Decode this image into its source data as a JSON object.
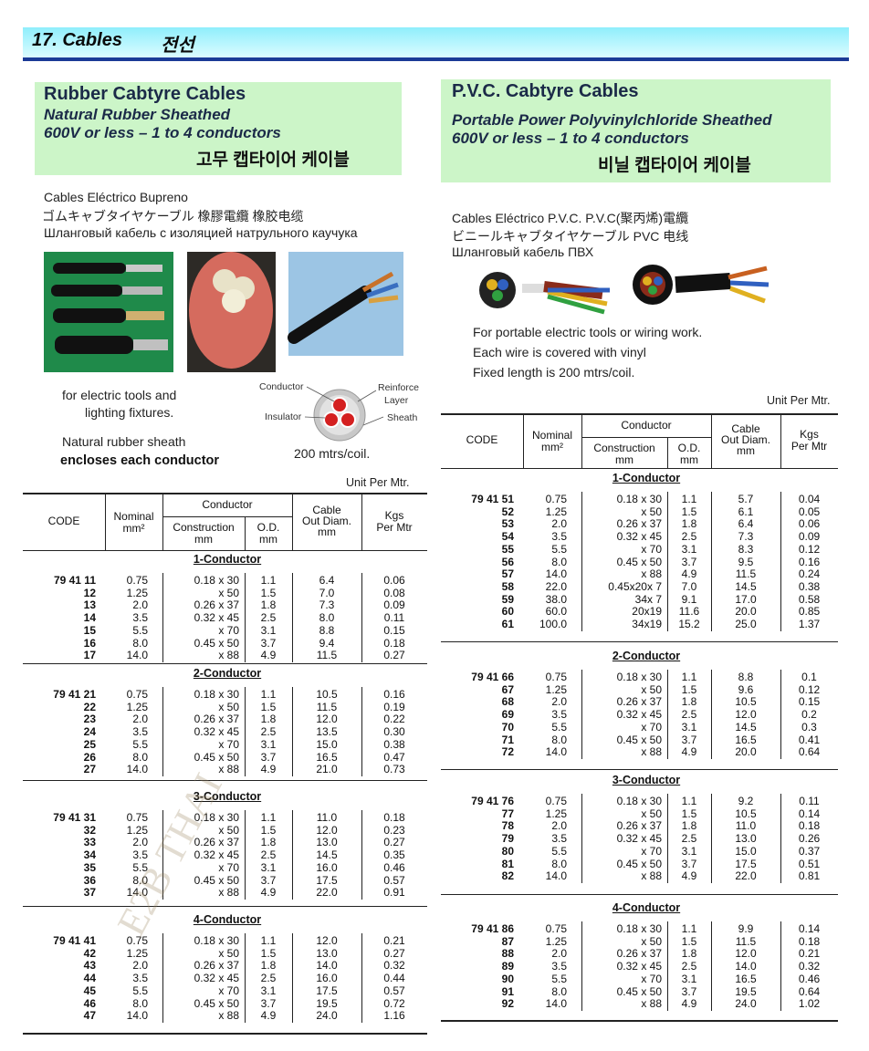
{
  "header": {
    "title": "17. Cables",
    "title_korean": "전선"
  },
  "watermark": "E2B THAI",
  "sections": [
    {
      "title": "Rubber Cabtyre Cables",
      "subtitle": "Natural Rubber Sheathed",
      "rating": "600V or less – 1 to 4 conductors",
      "korean": "고무 캡타이어 케이블",
      "names": [
        "Cables Eléctrico Bupreno",
        "ゴムキャブタイヤケーブル  橡膠電纜   橡胶电缆",
        "Шланговый кабель с изоляцией натрульного каучука"
      ],
      "description": [
        "for electric tools and",
        "lighting fixtures.",
        "Natural rubber sheath",
        "encloses each conductor"
      ],
      "diagram": {
        "conductor": "Conductor",
        "reinforce": "Reinforce",
        "layer": "Layer",
        "insulator": "Insulator",
        "sheath": "Sheath"
      },
      "coil_length": "200 mtrs/coil.",
      "unit_note": "Unit Per Mtr.",
      "table": {
        "columns": {
          "code": "CODE",
          "nominal": "Nominal",
          "nominal_unit": "mm²",
          "conductor": "Conductor",
          "construction": "Construction",
          "construction_unit": "mm",
          "od": "O.D.",
          "od_unit": "mm",
          "cable": "Cable",
          "cable_2": "Out Diam.",
          "cable_unit": "mm",
          "kgs": "Kgs",
          "kgs_2": "Per Mtr"
        },
        "groups": [
          {
            "heading": "1-Conductor",
            "rows": [
              [
                "79 41 11",
                "0.75",
                "0.18 x 30",
                "1.1",
                "6.4",
                "0.06"
              ],
              [
                "12",
                "1.25",
                "x 50",
                "1.5",
                "7.0",
                "0.08"
              ],
              [
                "13",
                "2.0",
                "0.26 x 37",
                "1.8",
                "7.3",
                "0.09"
              ],
              [
                "14",
                "3.5",
                "0.32 x 45",
                "2.5",
                "8.0",
                "0.11"
              ],
              [
                "15",
                "5.5",
                "x 70",
                "3.1",
                "8.8",
                "0.15"
              ],
              [
                "16",
                "8.0",
                "0.45 x 50",
                "3.7",
                "9.4",
                "0.18"
              ],
              [
                "17",
                "14.0",
                "x 88",
                "4.9",
                "11.5",
                "0.27"
              ]
            ]
          },
          {
            "heading": "2-Conductor",
            "rows": [
              [
                "79 41 21",
                "0.75",
                "0.18 x 30",
                "1.1",
                "10.5",
                "0.16"
              ],
              [
                "22",
                "1.25",
                "x 50",
                "1.5",
                "11.5",
                "0.19"
              ],
              [
                "23",
                "2.0",
                "0.26 x 37",
                "1.8",
                "12.0",
                "0.22"
              ],
              [
                "24",
                "3.5",
                "0.32 x 45",
                "2.5",
                "13.5",
                "0.30"
              ],
              [
                "25",
                "5.5",
                "x 70",
                "3.1",
                "15.0",
                "0.38"
              ],
              [
                "26",
                "8.0",
                "0.45 x 50",
                "3.7",
                "16.5",
                "0.47"
              ],
              [
                "27",
                "14.0",
                "x 88",
                "4.9",
                "21.0",
                "0.73"
              ]
            ]
          },
          {
            "heading": "3-Conductor",
            "rows": [
              [
                "79 41 31",
                "0.75",
                "0.18 x 30",
                "1.1",
                "11.0",
                "0.18"
              ],
              [
                "32",
                "1.25",
                "x 50",
                "1.5",
                "12.0",
                "0.23"
              ],
              [
                "33",
                "2.0",
                "0.26 x 37",
                "1.8",
                "13.0",
                "0.27"
              ],
              [
                "34",
                "3.5",
                "0.32 x 45",
                "2.5",
                "14.5",
                "0.35"
              ],
              [
                "35",
                "5.5",
                "x 70",
                "3.1",
                "16.0",
                "0.46"
              ],
              [
                "36",
                "8.0",
                "0.45 x 50",
                "3.7",
                "17.5",
                "0.57"
              ],
              [
                "37",
                "14.0",
                "x 88",
                "4.9",
                "22.0",
                "0.91"
              ]
            ]
          },
          {
            "heading": "4-Conductor",
            "rows": [
              [
                "79 41 41",
                "0.75",
                "0.18 x 30",
                "1.1",
                "12.0",
                "0.21"
              ],
              [
                "42",
                "1.25",
                "x 50",
                "1.5",
                "13.0",
                "0.27"
              ],
              [
                "43",
                "2.0",
                "0.26 x 37",
                "1.8",
                "14.0",
                "0.32"
              ],
              [
                "44",
                "3.5",
                "0.32 x 45",
                "2.5",
                "16.0",
                "0.44"
              ],
              [
                "45",
                "5.5",
                "x 70",
                "3.1",
                "17.5",
                "0.57"
              ],
              [
                "46",
                "8.0",
                "0.45 x 50",
                "3.7",
                "19.5",
                "0.72"
              ],
              [
                "47",
                "14.0",
                "x 88",
                "4.9",
                "24.0",
                "1.16"
              ]
            ]
          }
        ]
      }
    },
    {
      "title": "P.V.C. Cabtyre Cables",
      "subtitle": "Portable Power Polyvinylchloride Sheathed",
      "rating": "600V or less – 1 to 4 conductors",
      "korean": "비닐 캡타이어 케이블",
      "names": [
        "Cables Eléctrico P.V.C.  P.V.C(聚丙烯)電纜",
        "ビニールキャブタイヤケーブル   PVC 电线",
        "Шланговый кабель ПВХ"
      ],
      "description": [
        "For portable electric tools or wiring work.",
        "Each wire is covered with vinyl",
        "Fixed length is 200 mtrs/coil."
      ],
      "unit_note": "Unit Per Mtr.",
      "table": {
        "columns": {
          "code": "CODE",
          "nominal": "Nominal",
          "nominal_unit": "mm²",
          "conductor": "Conductor",
          "construction": "Construction",
          "construction_unit": "mm",
          "od": "O.D.",
          "od_unit": "mm",
          "cable": "Cable",
          "cable_2": "Out Diam.",
          "cable_unit": "mm",
          "kgs": "Kgs",
          "kgs_2": "Per Mtr"
        },
        "groups": [
          {
            "heading": "1-Conductor",
            "rows": [
              [
                "79 41 51",
                "0.75",
                "0.18 x 30",
                "1.1",
                "5.7",
                "0.04"
              ],
              [
                "52",
                "1.25",
                "x 50",
                "1.5",
                "6.1",
                "0.05"
              ],
              [
                "53",
                "2.0",
                "0.26 x 37",
                "1.8",
                "6.4",
                "0.06"
              ],
              [
                "54",
                "3.5",
                "0.32 x 45",
                "2.5",
                "7.3",
                "0.09"
              ],
              [
                "55",
                "5.5",
                "x 70",
                "3.1",
                "8.3",
                "0.12"
              ],
              [
                "56",
                "8.0",
                "0.45 x 50",
                "3.7",
                "9.5",
                "0.16"
              ],
              [
                "57",
                "14.0",
                "x 88",
                "4.9",
                "11.5",
                "0.24"
              ],
              [
                "58",
                "22.0",
                "0.45x20x 7",
                "7.0",
                "14.5",
                "0.38"
              ],
              [
                "59",
                "38.0",
                "34x 7",
                "9.1",
                "17.0",
                "0.58"
              ],
              [
                "60",
                "60.0",
                "20x19",
                "11.6",
                "20.0",
                "0.85"
              ],
              [
                "61",
                "100.0",
                "34x19",
                "15.2",
                "25.0",
                "1.37"
              ]
            ]
          },
          {
            "heading": "2-Conductor",
            "rows": [
              [
                "79 41 66",
                "0.75",
                "0.18 x 30",
                "1.1",
                "8.8",
                "0.1"
              ],
              [
                "67",
                "1.25",
                "x 50",
                "1.5",
                "9.6",
                "0.12"
              ],
              [
                "68",
                "2.0",
                "0.26 x 37",
                "1.8",
                "10.5",
                "0.15"
              ],
              [
                "69",
                "3.5",
                "0.32 x 45",
                "2.5",
                "12.0",
                "0.2"
              ],
              [
                "70",
                "5.5",
                "x 70",
                "3.1",
                "14.5",
                "0.3"
              ],
              [
                "71",
                "8.0",
                "0.45 x 50",
                "3.7",
                "16.5",
                "0.41"
              ],
              [
                "72",
                "14.0",
                "x 88",
                "4.9",
                "20.0",
                "0.64"
              ]
            ]
          },
          {
            "heading": "3-Conductor",
            "rows": [
              [
                "79 41 76",
                "0.75",
                "0.18 x 30",
                "1.1",
                "9.2",
                "0.11"
              ],
              [
                "77",
                "1.25",
                "x 50",
                "1.5",
                "10.5",
                "0.14"
              ],
              [
                "78",
                "2.0",
                "0.26 x 37",
                "1.8",
                "11.0",
                "0.18"
              ],
              [
                "79",
                "3.5",
                "0.32 x 45",
                "2.5",
                "13.0",
                "0.26"
              ],
              [
                "80",
                "5.5",
                "x 70",
                "3.1",
                "15.0",
                "0.37"
              ],
              [
                "81",
                "8.0",
                "0.45 x 50",
                "3.7",
                "17.5",
                "0.51"
              ],
              [
                "82",
                "14.0",
                "x 88",
                "4.9",
                "22.0",
                "0.81"
              ]
            ]
          },
          {
            "heading": "4-Conductor",
            "rows": [
              [
                "79 41 86",
                "0.75",
                "0.18 x 30",
                "1.1",
                "9.9",
                "0.14"
              ],
              [
                "87",
                "1.25",
                "x 50",
                "1.5",
                "11.5",
                "0.18"
              ],
              [
                "88",
                "2.0",
                "0.26 x 37",
                "1.8",
                "12.0",
                "0.21"
              ],
              [
                "89",
                "3.5",
                "0.32 x 45",
                "2.5",
                "14.0",
                "0.32"
              ],
              [
                "90",
                "5.5",
                "x 70",
                "3.1",
                "16.5",
                "0.46"
              ],
              [
                "91",
                "8.0",
                "0.45 x 50",
                "3.7",
                "19.5",
                "0.64"
              ],
              [
                "92",
                "14.0",
                "x 88",
                "4.9",
                "24.0",
                "1.02"
              ]
            ]
          }
        ]
      }
    }
  ]
}
